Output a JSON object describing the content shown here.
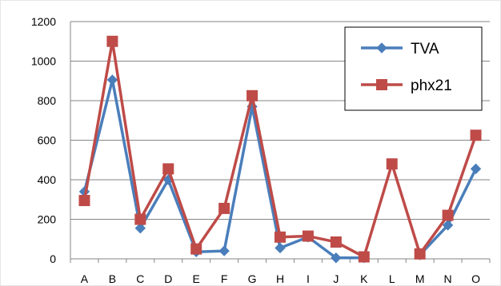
{
  "chart_data": {
    "type": "line",
    "title": "",
    "xlabel": "",
    "ylabel": "",
    "categories": [
      "A",
      "B",
      "C",
      "D",
      "E",
      "F",
      "G",
      "H",
      "I",
      "J",
      "K",
      "L",
      "M",
      "N",
      "O"
    ],
    "ylim": [
      0,
      1200
    ],
    "yticks": [
      0,
      200,
      400,
      600,
      800,
      1000,
      1200
    ],
    "grid": "horizontal",
    "legend_position": "top-right",
    "series": [
      {
        "name": "TVA",
        "color": "#4a7ebb",
        "marker": "diamond",
        "values": [
          340,
          905,
          155,
          400,
          35,
          40,
          770,
          55,
          110,
          5,
          5,
          null,
          20,
          170,
          455
        ]
      },
      {
        "name": "phx21",
        "color": "#be4b48",
        "marker": "square",
        "values": [
          295,
          1100,
          200,
          455,
          50,
          255,
          825,
          110,
          115,
          85,
          10,
          480,
          25,
          220,
          625
        ]
      }
    ]
  }
}
